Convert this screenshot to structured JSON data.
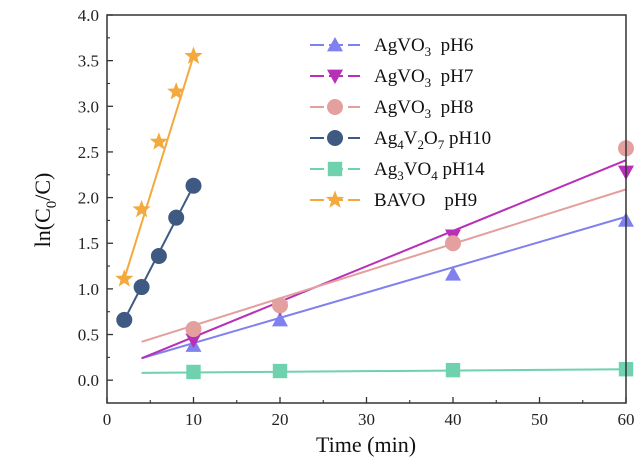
{
  "chart_data": {
    "type": "scatter",
    "xlabel": "Time (min)",
    "ylabel": "ln(C0/C)",
    "xlim": [
      0,
      60
    ],
    "ylim": [
      -0.25,
      4.0
    ],
    "xticks": [
      0,
      10,
      20,
      30,
      40,
      50,
      60
    ],
    "yticks": [
      0.0,
      0.5,
      1.0,
      1.5,
      2.0,
      2.5,
      3.0,
      3.5,
      4.0
    ],
    "xtick_labels": [
      "0",
      "10",
      "20",
      "30",
      "40",
      "50",
      "60"
    ],
    "ytick_labels": [
      "0.0",
      "0.5",
      "1.0",
      "1.5",
      "2.0",
      "2.5",
      "3.0",
      "3.5",
      "4.0"
    ],
    "grid": false,
    "legend_position": "top-right",
    "series": [
      {
        "name": "AgVO3 pH6",
        "legend_formula": "AgVO",
        "legend_sub": "3",
        "legend_ph": "pH6",
        "marker": "triangle-up",
        "color": "#8080ee",
        "x": [
          10,
          20,
          40,
          60
        ],
        "y": [
          0.38,
          0.66,
          1.16,
          1.75
        ],
        "fit": [
          [
            4,
            0.24
          ],
          [
            60,
            1.79
          ]
        ]
      },
      {
        "name": "AgVO3 pH7",
        "legend_formula": "AgVO",
        "legend_sub": "3",
        "legend_ph": "pH7",
        "marker": "triangle-down",
        "color": "#b82fb8",
        "x": [
          10,
          20,
          40,
          60
        ],
        "y": [
          0.44,
          0.79,
          1.58,
          2.28
        ],
        "fit": [
          [
            4,
            0.24
          ],
          [
            60,
            2.41
          ]
        ]
      },
      {
        "name": "AgVO3 pH8",
        "legend_formula": "AgVO",
        "legend_sub": "3",
        "legend_ph": "pH8",
        "marker": "circle",
        "color": "#e49f9f",
        "x": [
          10,
          20,
          40,
          60
        ],
        "y": [
          0.56,
          0.82,
          1.5,
          2.54
        ],
        "fit": [
          [
            4,
            0.42
          ],
          [
            60,
            2.09
          ]
        ]
      },
      {
        "name": "Ag4V2O7 pH10",
        "legend_formula": "Ag4V2O7",
        "legend_sub": "",
        "legend_ph": "pH10",
        "marker": "circle",
        "color": "#3f5a82",
        "x": [
          2,
          4,
          6,
          8,
          10
        ],
        "y": [
          0.66,
          1.02,
          1.36,
          1.78,
          2.13
        ],
        "fit": [
          [
            2,
            0.66
          ],
          [
            10,
            2.13
          ]
        ]
      },
      {
        "name": "Ag3VO4 pH14",
        "legend_formula": "Ag3VO4",
        "legend_sub": "",
        "legend_ph": "pH14",
        "marker": "square",
        "color": "#6fd1ad",
        "x": [
          10,
          20,
          40,
          60
        ],
        "y": [
          0.09,
          0.1,
          0.11,
          0.12
        ],
        "fit": [
          [
            4,
            0.08
          ],
          [
            60,
            0.12
          ]
        ]
      },
      {
        "name": "BAVO pH9",
        "legend_formula": "BAVO",
        "legend_sub": "",
        "legend_ph": "pH9",
        "marker": "star",
        "color": "#f4a93c",
        "x": [
          2,
          4,
          6,
          8,
          10
        ],
        "y": [
          1.11,
          1.87,
          2.61,
          3.16,
          3.55
        ],
        "fit": [
          [
            2,
            1.11
          ],
          [
            10,
            3.55
          ]
        ]
      }
    ]
  }
}
